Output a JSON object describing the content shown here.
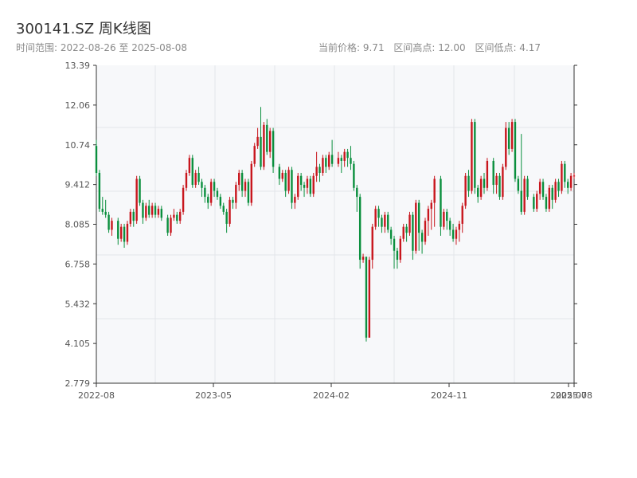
{
  "header": {
    "title": "300141.SZ 周K线图",
    "range_label": "时间范围: 2022-08-26 至 2025-08-08",
    "current_price": "当前价格: 9.71",
    "high_label": "区间高点: 12.00",
    "low_label": "区间低点: 4.17"
  },
  "colors": {
    "up": "#c8161d",
    "down": "#0a8f3d",
    "plot_bg": "#f7f8fa",
    "grid": "#e3e6ea",
    "axis": "#333333"
  },
  "chart_data": {
    "type": "candlestick",
    "title": "300141.SZ 周K线图",
    "ylim": [
      2.779,
      13.39
    ],
    "yticks": [
      "13.39",
      "12.06",
      "10.74",
      "9.412",
      "8.085",
      "6.758",
      "5.432",
      "4.105",
      "2.779"
    ],
    "xticks": [
      "2022-08",
      "2023-05",
      "2024-02",
      "2024-11",
      "2025-07",
      "2025-08"
    ],
    "grid": true,
    "x_start": "2022-08-26",
    "x_end": "2025-08-08",
    "candles": [
      [
        "2022-08-26",
        10.7,
        9.8,
        10.9,
        9.7
      ],
      [
        "2022-09-02",
        9.8,
        8.6,
        9.9,
        8.5
      ],
      [
        "2022-09-09",
        8.6,
        8.5,
        9.0,
        8.4
      ],
      [
        "2022-09-16",
        8.5,
        8.4,
        8.9,
        8.3
      ],
      [
        "2022-09-23",
        8.4,
        7.9,
        8.5,
        7.8
      ],
      [
        "2022-09-30",
        7.9,
        8.2,
        8.3,
        7.7
      ],
      [
        "2022-10-14",
        8.2,
        7.6,
        8.3,
        7.4
      ],
      [
        "2022-10-21",
        7.6,
        8.0,
        8.1,
        7.5
      ],
      [
        "2022-10-28",
        8.0,
        7.5,
        8.1,
        7.3
      ],
      [
        "2022-11-04",
        7.5,
        8.1,
        8.2,
        7.4
      ],
      [
        "2022-11-11",
        8.1,
        8.5,
        8.6,
        8.0
      ],
      [
        "2022-11-18",
        8.5,
        8.2,
        8.6,
        8.0
      ],
      [
        "2022-11-25",
        8.2,
        9.6,
        9.7,
        8.1
      ],
      [
        "2022-12-02",
        9.6,
        8.8,
        9.7,
        8.7
      ],
      [
        "2022-12-09",
        8.8,
        8.3,
        8.9,
        8.1
      ],
      [
        "2022-12-16",
        8.3,
        8.7,
        8.8,
        8.2
      ],
      [
        "2022-12-23",
        8.7,
        8.4,
        8.9,
        8.3
      ],
      [
        "2022-12-30",
        8.4,
        8.7,
        8.8,
        8.3
      ],
      [
        "2023-01-06",
        8.7,
        8.4,
        8.8,
        8.3
      ],
      [
        "2023-01-13",
        8.4,
        8.6,
        8.7,
        8.3
      ],
      [
        "2023-01-20",
        8.6,
        8.3,
        8.7,
        8.2
      ],
      [
        "2023-02-03",
        8.3,
        7.8,
        8.4,
        7.7
      ],
      [
        "2023-02-10",
        7.8,
        8.3,
        8.4,
        7.7
      ],
      [
        "2023-02-17",
        8.3,
        8.4,
        8.6,
        8.2
      ],
      [
        "2023-02-24",
        8.4,
        8.2,
        8.5,
        8.1
      ],
      [
        "2023-03-03",
        8.2,
        8.5,
        8.6,
        8.1
      ],
      [
        "2023-03-10",
        8.5,
        9.3,
        9.4,
        8.4
      ],
      [
        "2023-03-17",
        9.3,
        9.8,
        9.9,
        9.2
      ],
      [
        "2023-03-24",
        9.8,
        10.3,
        10.4,
        9.7
      ],
      [
        "2023-03-31",
        10.3,
        9.4,
        10.4,
        9.3
      ],
      [
        "2023-04-07",
        9.4,
        9.8,
        9.9,
        9.3
      ],
      [
        "2023-04-14",
        9.8,
        9.5,
        10.0,
        9.4
      ],
      [
        "2023-04-21",
        9.5,
        9.3,
        9.6,
        9.0
      ],
      [
        "2023-04-28",
        9.3,
        9.0,
        9.4,
        8.8
      ],
      [
        "2023-05-05",
        9.0,
        8.8,
        9.1,
        8.6
      ],
      [
        "2023-05-12",
        8.8,
        9.5,
        9.6,
        8.7
      ],
      [
        "2023-05-19",
        9.5,
        9.2,
        9.6,
        9.0
      ],
      [
        "2023-05-26",
        9.2,
        9.0,
        9.3,
        8.9
      ],
      [
        "2023-06-02",
        9.0,
        8.7,
        9.1,
        8.6
      ],
      [
        "2023-06-09",
        8.7,
        8.5,
        8.8,
        8.4
      ],
      [
        "2023-06-16",
        8.5,
        8.1,
        8.6,
        7.8
      ],
      [
        "2023-06-23",
        8.1,
        8.9,
        9.0,
        8.0
      ],
      [
        "2023-06-30",
        8.9,
        8.8,
        9.0,
        8.6
      ],
      [
        "2023-07-07",
        8.8,
        9.4,
        9.5,
        8.6
      ],
      [
        "2023-07-14",
        9.4,
        9.8,
        9.9,
        9.2
      ],
      [
        "2023-07-21",
        9.8,
        9.2,
        9.9,
        9.0
      ],
      [
        "2023-07-28",
        9.2,
        9.5,
        9.6,
        9.0
      ],
      [
        "2023-08-04",
        9.5,
        8.8,
        9.6,
        8.7
      ],
      [
        "2023-08-11",
        8.8,
        10.1,
        10.2,
        8.7
      ],
      [
        "2023-08-18",
        10.1,
        10.7,
        10.8,
        10.0
      ],
      [
        "2023-08-25",
        10.7,
        11.0,
        11.3,
        10.6
      ],
      [
        "2023-09-01",
        11.0,
        10.0,
        12.0,
        9.9
      ],
      [
        "2023-09-08",
        10.0,
        11.4,
        11.5,
        9.9
      ],
      [
        "2023-09-15",
        11.4,
        10.5,
        11.6,
        10.4
      ],
      [
        "2023-09-22",
        10.5,
        11.2,
        11.3,
        10.3
      ],
      [
        "2023-09-29",
        11.2,
        10.0,
        11.3,
        9.8
      ],
      [
        "2023-10-13",
        10.0,
        9.6,
        10.1,
        9.4
      ],
      [
        "2023-10-20",
        9.6,
        9.8,
        9.9,
        9.5
      ],
      [
        "2023-10-27",
        9.8,
        9.2,
        9.9,
        9.0
      ],
      [
        "2023-11-03",
        9.2,
        9.9,
        10.0,
        9.1
      ],
      [
        "2023-11-10",
        9.9,
        8.8,
        10.0,
        8.6
      ],
      [
        "2023-11-17",
        8.8,
        9.0,
        9.1,
        8.6
      ],
      [
        "2023-11-24",
        9.0,
        9.7,
        9.8,
        8.9
      ],
      [
        "2023-12-01",
        9.7,
        9.4,
        9.8,
        9.2
      ],
      [
        "2023-12-08",
        9.4,
        9.3,
        9.5,
        9.0
      ],
      [
        "2023-12-15",
        9.3,
        9.6,
        9.7,
        9.1
      ],
      [
        "2023-12-22",
        9.6,
        9.1,
        9.7,
        9.0
      ],
      [
        "2023-12-29",
        9.1,
        9.7,
        9.8,
        9.0
      ],
      [
        "2024-01-05",
        9.7,
        10.0,
        10.5,
        9.5
      ],
      [
        "2024-01-12",
        10.0,
        9.8,
        10.1,
        9.5
      ],
      [
        "2024-01-19",
        9.8,
        10.3,
        10.4,
        9.7
      ],
      [
        "2024-01-26",
        10.3,
        10.0,
        10.4,
        9.8
      ],
      [
        "2024-02-02",
        10.0,
        10.4,
        10.5,
        9.9
      ],
      [
        "2024-02-09",
        10.4,
        10.1,
        10.9,
        10.0
      ],
      [
        "2024-02-23",
        10.1,
        10.3,
        10.5,
        10.0
      ],
      [
        "2024-03-01",
        10.3,
        10.2,
        10.4,
        9.8
      ],
      [
        "2024-03-08",
        10.2,
        10.5,
        10.6,
        10.0
      ],
      [
        "2024-03-15",
        10.5,
        10.3,
        10.6,
        10.0
      ],
      [
        "2024-03-22",
        10.3,
        10.1,
        10.7,
        9.9
      ],
      [
        "2024-03-29",
        10.1,
        9.3,
        10.2,
        9.2
      ],
      [
        "2024-04-05",
        9.3,
        9.0,
        9.4,
        8.5
      ],
      [
        "2024-04-12",
        9.0,
        6.9,
        9.1,
        6.6
      ],
      [
        "2024-04-19",
        6.9,
        7.0,
        7.1,
        6.8
      ],
      [
        "2024-04-26",
        7.0,
        4.3,
        7.0,
        4.17
      ],
      [
        "2024-05-03",
        4.3,
        6.9,
        7.0,
        4.3
      ],
      [
        "2024-05-10",
        6.9,
        8.0,
        8.1,
        6.6
      ],
      [
        "2024-05-17",
        8.0,
        8.6,
        8.7,
        7.9
      ],
      [
        "2024-05-24",
        8.6,
        8.3,
        8.7,
        8.0
      ],
      [
        "2024-05-31",
        8.3,
        8.0,
        8.4,
        7.8
      ],
      [
        "2024-06-07",
        8.0,
        8.4,
        8.5,
        7.8
      ],
      [
        "2024-06-14",
        8.4,
        7.9,
        8.5,
        7.8
      ],
      [
        "2024-06-21",
        7.9,
        7.6,
        8.0,
        7.4
      ],
      [
        "2024-06-28",
        7.6,
        7.2,
        7.7,
        6.6
      ],
      [
        "2024-07-05",
        7.2,
        6.9,
        7.3,
        6.6
      ],
      [
        "2024-07-12",
        6.9,
        7.6,
        7.7,
        6.8
      ],
      [
        "2024-07-19",
        7.6,
        8.0,
        8.1,
        7.5
      ],
      [
        "2024-07-26",
        8.0,
        7.8,
        8.1,
        7.5
      ],
      [
        "2024-08-02",
        7.8,
        8.4,
        8.5,
        7.7
      ],
      [
        "2024-08-09",
        8.4,
        7.2,
        8.5,
        6.9
      ],
      [
        "2024-08-16",
        7.2,
        8.8,
        8.9,
        7.1
      ],
      [
        "2024-08-23",
        8.8,
        7.8,
        8.9,
        7.2
      ],
      [
        "2024-08-30",
        7.8,
        7.5,
        7.9,
        7.1
      ],
      [
        "2024-09-06",
        7.5,
        8.2,
        8.3,
        7.4
      ],
      [
        "2024-09-13",
        8.2,
        8.6,
        8.7,
        7.7
      ],
      [
        "2024-09-20",
        8.6,
        8.8,
        8.9,
        7.9
      ],
      [
        "2024-09-27",
        8.8,
        9.6,
        9.7,
        8.0
      ],
      [
        "2024-10-11",
        9.6,
        8.0,
        9.7,
        7.7
      ],
      [
        "2024-10-18",
        8.0,
        8.5,
        8.6,
        7.9
      ],
      [
        "2024-10-25",
        8.5,
        8.2,
        8.6,
        7.9
      ],
      [
        "2024-11-01",
        8.2,
        7.9,
        8.3,
        7.7
      ],
      [
        "2024-11-08",
        7.9,
        7.6,
        8.1,
        7.5
      ],
      [
        "2024-11-15",
        7.6,
        7.9,
        8.0,
        7.4
      ],
      [
        "2024-11-22",
        7.9,
        8.1,
        8.2,
        7.5
      ],
      [
        "2024-11-29",
        8.1,
        8.7,
        8.8,
        7.8
      ],
      [
        "2024-12-06",
        8.7,
        9.7,
        9.8,
        8.6
      ],
      [
        "2024-12-13",
        9.7,
        9.2,
        9.9,
        9.0
      ],
      [
        "2024-12-20",
        9.2,
        11.5,
        11.6,
        9.1
      ],
      [
        "2024-12-27",
        11.5,
        9.3,
        11.6,
        9.1
      ],
      [
        "2025-01-03",
        9.3,
        9.0,
        9.4,
        8.8
      ],
      [
        "2025-01-10",
        9.0,
        9.6,
        9.7,
        8.9
      ],
      [
        "2025-01-17",
        9.6,
        9.3,
        9.8,
        9.1
      ],
      [
        "2025-01-24",
        9.3,
        10.2,
        10.3,
        9.2
      ],
      [
        "2025-02-07",
        10.2,
        9.4,
        10.3,
        9.1
      ],
      [
        "2025-02-14",
        9.4,
        9.7,
        9.8,
        9.1
      ],
      [
        "2025-02-21",
        9.7,
        9.0,
        9.8,
        8.9
      ],
      [
        "2025-02-28",
        9.0,
        10.0,
        10.1,
        8.9
      ],
      [
        "2025-03-07",
        10.0,
        11.3,
        11.5,
        9.9
      ],
      [
        "2025-03-14",
        11.3,
        10.6,
        11.5,
        10.4
      ],
      [
        "2025-03-21",
        10.6,
        11.5,
        11.6,
        10.5
      ],
      [
        "2025-03-28",
        11.5,
        9.6,
        11.6,
        9.5
      ],
      [
        "2025-04-04",
        9.6,
        9.2,
        9.7,
        9.1
      ],
      [
        "2025-04-11",
        9.2,
        8.5,
        11.1,
        8.4
      ],
      [
        "2025-04-18",
        8.5,
        9.6,
        9.7,
        8.4
      ],
      [
        "2025-04-25",
        9.6,
        9.0,
        9.7,
        8.9
      ],
      [
        "2025-05-09",
        9.0,
        8.6,
        9.1,
        8.5
      ],
      [
        "2025-05-16",
        8.6,
        9.1,
        9.2,
        8.5
      ],
      [
        "2025-05-23",
        9.1,
        9.5,
        9.6,
        8.9
      ],
      [
        "2025-05-30",
        9.5,
        9.0,
        9.6,
        8.9
      ],
      [
        "2025-06-06",
        9.0,
        8.6,
        9.1,
        8.5
      ],
      [
        "2025-06-13",
        8.6,
        9.3,
        9.4,
        8.5
      ],
      [
        "2025-06-20",
        9.3,
        8.9,
        9.4,
        8.6
      ],
      [
        "2025-06-27",
        8.9,
        9.5,
        9.6,
        8.8
      ],
      [
        "2025-07-04",
        9.5,
        9.2,
        9.6,
        9.0
      ],
      [
        "2025-07-11",
        9.2,
        10.1,
        10.2,
        9.1
      ],
      [
        "2025-07-18",
        10.1,
        9.5,
        10.2,
        9.3
      ],
      [
        "2025-07-25",
        9.5,
        9.3,
        9.6,
        9.1
      ],
      [
        "2025-08-01",
        9.3,
        9.7,
        9.8,
        9.2
      ],
      [
        "2025-08-08",
        9.7,
        9.71,
        9.8,
        9.6
      ]
    ]
  }
}
